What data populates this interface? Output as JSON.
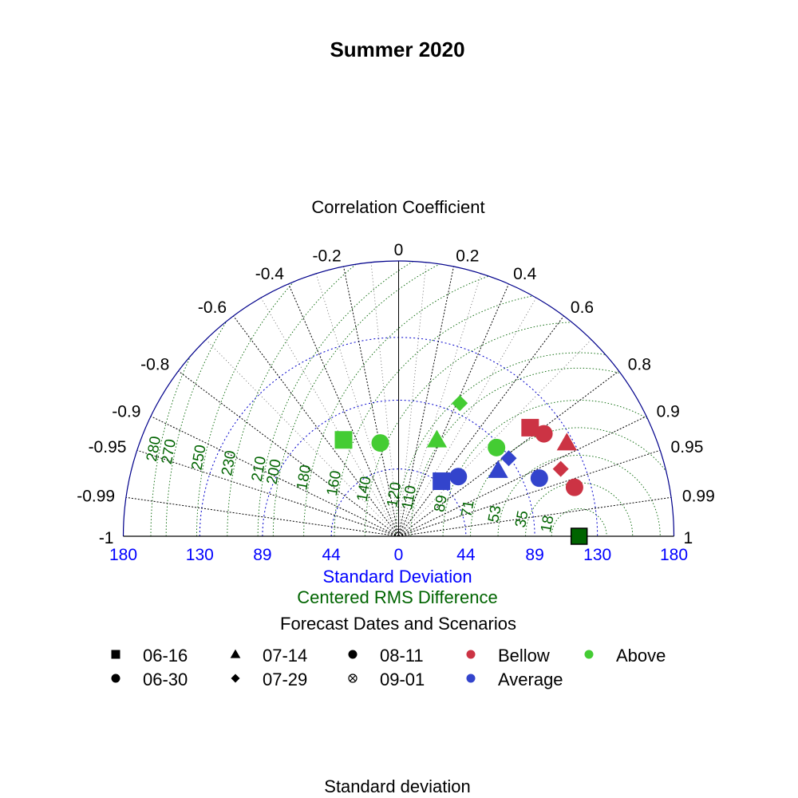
{
  "chart_data": {
    "type": "scatter",
    "subtype": "taylor-diagram",
    "title": "Summer 2020",
    "correlation_label": "Correlation Coefficient",
    "xlabel_sd": "Standard Deviation",
    "xlabel_rms": "Centered RMS Difference",
    "bottom_label": "Standard deviation",
    "legend_title": "Forecast Dates and Scenarios",
    "legend_position": "bottom",
    "sd_range": [
      -180,
      180
    ],
    "sd_ticks": [
      {
        "value": -180,
        "label": "180"
      },
      {
        "value": -130,
        "label": "130"
      },
      {
        "value": -89,
        "label": "89"
      },
      {
        "value": -44,
        "label": "44"
      },
      {
        "value": 0,
        "label": "0"
      },
      {
        "value": 44,
        "label": "44"
      },
      {
        "value": 89,
        "label": "89"
      },
      {
        "value": 130,
        "label": "130"
      },
      {
        "value": 180,
        "label": "180"
      }
    ],
    "sd_arcs": [
      44,
      89,
      130
    ],
    "corr_ticks": [
      {
        "value": -1,
        "label": "-1"
      },
      {
        "value": -0.99,
        "label": "-0.99"
      },
      {
        "value": -0.95,
        "label": "-0.95"
      },
      {
        "value": -0.9,
        "label": "-0.9"
      },
      {
        "value": -0.8,
        "label": "-0.8"
      },
      {
        "value": -0.6,
        "label": "-0.6"
      },
      {
        "value": -0.4,
        "label": "-0.4"
      },
      {
        "value": -0.2,
        "label": "-0.2"
      },
      {
        "value": 0,
        "label": "0"
      },
      {
        "value": 0.2,
        "label": "0.2"
      },
      {
        "value": 0.4,
        "label": "0.4"
      },
      {
        "value": 0.6,
        "label": "0.6"
      },
      {
        "value": 0.8,
        "label": "0.8"
      },
      {
        "value": 0.9,
        "label": "0.9"
      },
      {
        "value": 0.95,
        "label": "0.95"
      },
      {
        "value": 0.99,
        "label": "0.99"
      },
      {
        "value": 1,
        "label": "1"
      }
    ],
    "reference": {
      "sd": 118,
      "marker": "square",
      "color": "#006400"
    },
    "rms_arcs": [
      18,
      35,
      53,
      71,
      89,
      110,
      120,
      140,
      160,
      180,
      200,
      210,
      230,
      250,
      270,
      280
    ],
    "rms_labels": [
      {
        "value": 18,
        "label": "18"
      },
      {
        "value": 35,
        "label": "35"
      },
      {
        "value": 53,
        "label": "53"
      },
      {
        "value": 71,
        "label": "71"
      },
      {
        "value": 89,
        "label": "89"
      },
      {
        "value": 110,
        "label": "110"
      },
      {
        "value": 120,
        "label": "120"
      },
      {
        "value": 140,
        "label": "140"
      },
      {
        "value": 160,
        "label": "160"
      },
      {
        "value": 180,
        "label": "180"
      },
      {
        "value": 200,
        "label": "200"
      },
      {
        "value": 210,
        "label": "210"
      },
      {
        "value": 230,
        "label": "230"
      },
      {
        "value": 250,
        "label": "250"
      },
      {
        "value": 270,
        "label": "270"
      },
      {
        "value": 280,
        "label": "280"
      }
    ],
    "colors": {
      "axis": "#00008b",
      "sd_text": "#0000ff",
      "rms": "#006400",
      "bellow": "#cc3344",
      "average": "#3344cc",
      "above": "#44cc33"
    },
    "points": [
      {
        "scenario": "Bellow",
        "date": "06-16",
        "x": 86,
        "y": 71
      },
      {
        "scenario": "Bellow",
        "date": "06-30",
        "x": 95,
        "y": 67
      },
      {
        "scenario": "Bellow",
        "date": "07-14",
        "x": 110,
        "y": 61
      },
      {
        "scenario": "Bellow",
        "date": "07-29",
        "x": 106,
        "y": 44
      },
      {
        "scenario": "Bellow",
        "date": "08-11",
        "x": 115,
        "y": 32
      },
      {
        "scenario": "Average",
        "date": "06-16",
        "x": 28,
        "y": 36
      },
      {
        "scenario": "Average",
        "date": "06-30",
        "x": 39,
        "y": 39
      },
      {
        "scenario": "Average",
        "date": "07-14",
        "x": 65,
        "y": 43
      },
      {
        "scenario": "Average",
        "date": "07-29",
        "x": 72,
        "y": 51
      },
      {
        "scenario": "Average",
        "date": "08-11",
        "x": 92,
        "y": 38
      },
      {
        "scenario": "Above",
        "date": "06-16",
        "x": -36,
        "y": 63
      },
      {
        "scenario": "Above",
        "date": "06-30",
        "x": -12,
        "y": 61
      },
      {
        "scenario": "Above",
        "date": "07-14",
        "x": 25,
        "y": 63
      },
      {
        "scenario": "Above",
        "date": "07-29",
        "x": 40,
        "y": 87
      },
      {
        "scenario": "Above",
        "date": "08-11",
        "x": 64,
        "y": 58
      }
    ],
    "legend_dates": [
      {
        "label": "06-16",
        "marker": "square"
      },
      {
        "label": "06-30",
        "marker": "circle"
      },
      {
        "label": "07-14",
        "marker": "triangle"
      },
      {
        "label": "07-29",
        "marker": "diamond"
      },
      {
        "label": "08-11",
        "marker": "circle"
      },
      {
        "label": "09-01",
        "marker": "cross-circle"
      }
    ],
    "legend_scenarios": [
      {
        "label": "Bellow",
        "color": "#cc3344"
      },
      {
        "label": "Average",
        "color": "#3344cc"
      },
      {
        "label": "Above",
        "color": "#44cc33"
      }
    ]
  }
}
